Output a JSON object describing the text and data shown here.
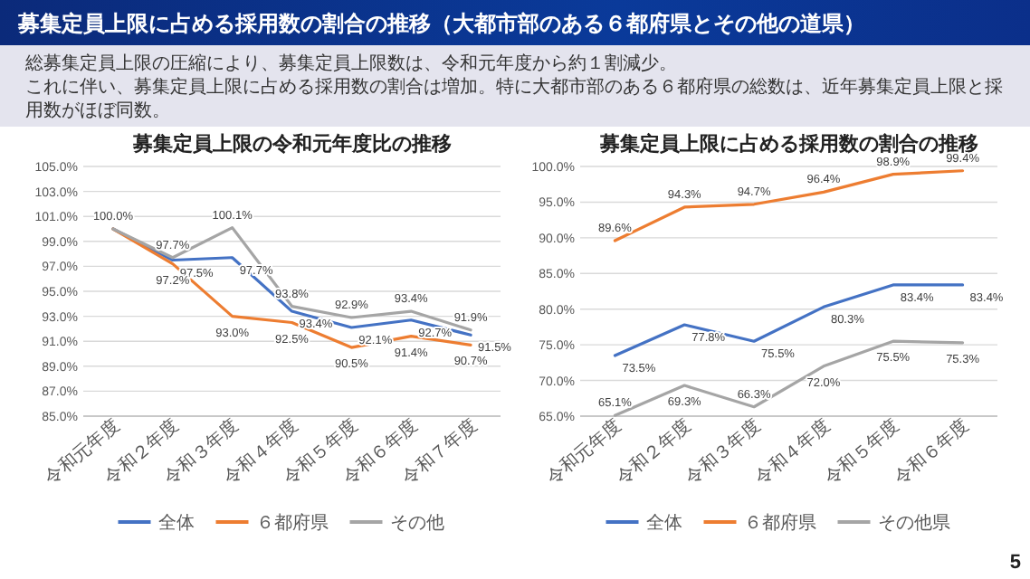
{
  "chart_data": [
    {
      "type": "other",
      "title": "募集定員上限に占める採用数の割合の推移（大都市部のある６都府県とその他の道県）",
      "annotations": [
        "総募集定員上限の圧縮により、募集定員上限数は、令和元年度から約１割減少。",
        "これに伴い、募集定員上限に占める採用数の割合は増加。特に大都市部のある６都府県の総数は、近年募集定員上限と採用数がほぼ同数。",
        "5"
      ]
    },
    {
      "type": "line",
      "title": "募集定員上限の令和元年度比の推移",
      "categories": [
        "令和元年度",
        "令和２年度",
        "令和３年度",
        "令和４年度",
        "令和５年度",
        "令和６年度",
        "令和７年度"
      ],
      "series": [
        {
          "name": "全体",
          "color": "#4472c4",
          "values": [
            100.0,
            97.5,
            97.7,
            93.4,
            92.1,
            92.7,
            91.5
          ],
          "value_labels": [
            null,
            "97.5%",
            "97.7%",
            "93.4%",
            "92.1%",
            "92.7%",
            "91.5%"
          ]
        },
        {
          "name": "６都府県",
          "color": "#ed7d31",
          "values": [
            100.0,
            97.2,
            93.0,
            92.5,
            90.5,
            91.4,
            90.7
          ],
          "value_labels": [
            null,
            "97.2%",
            "93.0%",
            "92.5%",
            "90.5%",
            "91.4%",
            "90.7%"
          ]
        },
        {
          "name": "その他",
          "color": "#a5a5a5",
          "values": [
            100.0,
            97.7,
            100.1,
            93.8,
            92.9,
            93.4,
            91.9
          ],
          "value_labels": [
            "100.0%",
            "97.7%",
            "100.1%",
            "93.8%",
            "92.9%",
            "93.4%",
            "91.9%"
          ]
        }
      ],
      "ylim": [
        85,
        105
      ],
      "yticks": [
        {
          "value": 85,
          "label": "85.0%"
        },
        {
          "value": 87,
          "label": "87.0%"
        },
        {
          "value": 89,
          "label": "89.0%"
        },
        {
          "value": 91,
          "label": "91.0%"
        },
        {
          "value": 93,
          "label": "93.0%"
        },
        {
          "value": 95,
          "label": "95.0%"
        },
        {
          "value": 97,
          "label": "97.0%"
        },
        {
          "value": 99,
          "label": "99.0%"
        },
        {
          "value": 101,
          "label": "101.0%"
        },
        {
          "value": 103,
          "label": "103.0%"
        },
        {
          "value": 105,
          "label": "105.0%"
        }
      ],
      "grid": "y",
      "legend": "bottom",
      "marker": "none",
      "line_style": "solid"
    },
    {
      "type": "line",
      "title": "募集定員上限に占める採用数の割合の推移",
      "categories": [
        "令和元年度",
        "令和２年度",
        "令和３年度",
        "令和４年度",
        "令和５年度",
        "令和６年度"
      ],
      "series": [
        {
          "name": "全体",
          "color": "#4472c4",
          "values": [
            73.5,
            77.8,
            75.5,
            80.3,
            83.4,
            83.4
          ],
          "value_labels": [
            "73.5%",
            "77.8%",
            "75.5%",
            "80.3%",
            "83.4%",
            "83.4%"
          ]
        },
        {
          "name": "６都府県",
          "color": "#ed7d31",
          "values": [
            89.6,
            94.3,
            94.7,
            96.4,
            98.9,
            99.4
          ],
          "value_labels": [
            "89.6%",
            "94.3%",
            "94.7%",
            "96.4%",
            "98.9%",
            "99.4%"
          ]
        },
        {
          "name": "その他県",
          "color": "#a5a5a5",
          "values": [
            65.1,
            69.3,
            66.3,
            72.0,
            75.5,
            75.3
          ],
          "value_labels": [
            "65.1%",
            "69.3%",
            "66.3%",
            "72.0%",
            "75.5%",
            "75.3%"
          ]
        }
      ],
      "ylim": [
        65,
        100
      ],
      "yticks": [
        {
          "value": 65,
          "label": "65.0%"
        },
        {
          "value": 70,
          "label": "70.0%"
        },
        {
          "value": 75,
          "label": "75.0%"
        },
        {
          "value": 80,
          "label": "80.0%"
        },
        {
          "value": 85,
          "label": "85.0%"
        },
        {
          "value": 90,
          "label": "90.0%"
        },
        {
          "value": 95,
          "label": "95.0%"
        },
        {
          "value": 100,
          "label": "100.0%"
        }
      ],
      "grid": "y",
      "legend": "bottom",
      "marker": "none",
      "line_style": "solid"
    }
  ]
}
